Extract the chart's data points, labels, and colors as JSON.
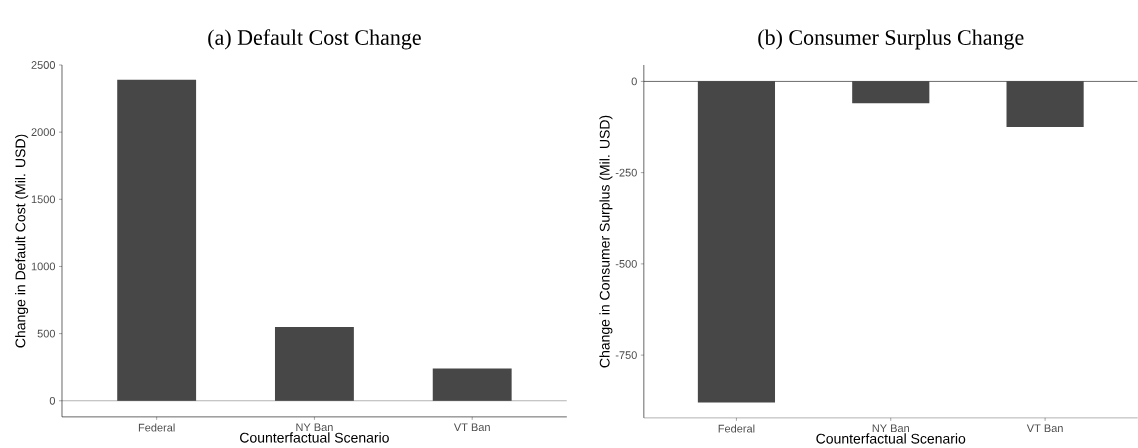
{
  "chart_data": [
    {
      "type": "bar",
      "title": "(a) Default Cost Change",
      "xlabel": "Counterfactual Scenario",
      "ylabel": "Change in Default Cost (Mil. USD)",
      "categories": [
        "Federal",
        "NY Ban",
        "VT Ban"
      ],
      "values": [
        2390,
        550,
        240
      ],
      "color": "#474747",
      "ylim": [
        -120,
        2500
      ],
      "yticks": [
        0,
        500,
        1000,
        1500,
        2000,
        2500
      ],
      "grid": false,
      "ref_lines": [
        {
          "axis": "y",
          "value": 0,
          "color": "#000000"
        }
      ]
    },
    {
      "type": "bar",
      "title": "(b) Consumer Surplus Change",
      "xlabel": "Counterfactual Scenario",
      "ylabel": "Change in Consumer Surplus (Mil. USD)",
      "categories": [
        "Federal",
        "NY Ban",
        "VT Ban"
      ],
      "values": [
        -880,
        -60,
        -125
      ],
      "color": "#474747",
      "ylim": [
        -922,
        45
      ],
      "yticks": [
        -750,
        -500,
        -250,
        0
      ],
      "grid": false,
      "ref_lines": [
        {
          "axis": "y",
          "value": 0,
          "color": "#000000"
        }
      ]
    }
  ]
}
